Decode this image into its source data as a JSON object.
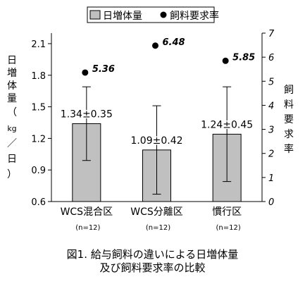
{
  "chart_data": {
    "type": "bar",
    "categories": [
      "WCS混合区",
      "WCS分離区",
      "慣行区"
    ],
    "category_notes": [
      "(n=12)",
      "(n=12)",
      "(n=12)"
    ],
    "series": [
      {
        "name": "日増体量",
        "type": "bar",
        "axis": "left",
        "values": [
          1.34,
          1.09,
          1.24
        ],
        "errors": [
          0.35,
          0.42,
          0.45
        ],
        "value_labels": [
          "1.34±0.35",
          "1.09±0.42",
          "1.24±0.45"
        ],
        "color": "#c0c0c0"
      },
      {
        "name": "飼料要求率",
        "type": "scatter",
        "axis": "right",
        "values": [
          5.36,
          6.48,
          5.85
        ],
        "value_labels": [
          "5.36",
          "6.48",
          "5.85"
        ],
        "color": "#000000"
      }
    ],
    "ylabel": "日増体量（kg／日）",
    "ylabel_chars": [
      "日",
      "増",
      "体",
      "量",
      "（",
      "kg",
      "／",
      "日",
      "）"
    ],
    "y_ticks": [
      "0.6",
      "0.9",
      "1.2",
      "1.5",
      "1.8",
      "2.1"
    ],
    "ylim": [
      0.6,
      2.2
    ],
    "y2label": "飼料要求率",
    "y2label_chars": [
      "飼",
      "料",
      "要",
      "求",
      "率"
    ],
    "y2_ticks": [
      "0",
      "1",
      "2",
      "3",
      "4",
      "5",
      "6",
      "7"
    ],
    "y2lim": [
      0,
      7
    ],
    "grid": false,
    "legend_position": "top"
  },
  "caption": {
    "line1": "図1. 給与飼料の違いによる日増体量",
    "line2": "及び飼料要求率の比較"
  }
}
